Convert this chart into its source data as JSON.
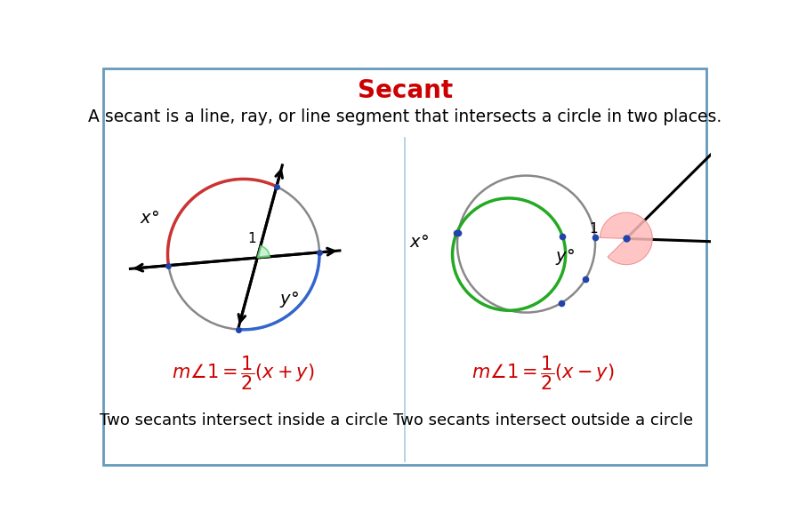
{
  "title": "Secant",
  "title_color": "#cc0000",
  "title_fontsize": 20,
  "subtitle": "A secant is a line, ray, or line segment that intersects a circle in two places.",
  "subtitle_fontsize": 13.5,
  "background_color": "#f2f4f8",
  "border_color": "#6699bb",
  "formula_color": "#cc0000",
  "label_left": "Two secants intersect inside a circle",
  "label_right": "Two secants intersect outside a circle",
  "label_fontsize": 13,
  "circle_gray": "#888888",
  "circle_green": "#22aa22",
  "arc_red": "#cc3333",
  "arc_blue": "#3366cc",
  "arc_green_small": "#55cc55",
  "dot_color": "#2244aa",
  "arrow_lw": 2.2
}
